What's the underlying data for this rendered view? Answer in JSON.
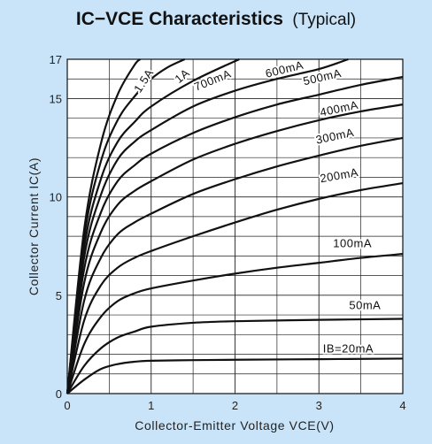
{
  "chart_data": {
    "type": "line",
    "title": "IC−VCE Characteristics",
    "subtitle": "(Typical)",
    "xlabel": "Collector-Emitter Voltage VCE(V)",
    "ylabel": "Collector Current IC(A)",
    "xlim": [
      0,
      4
    ],
    "ylim": [
      0,
      17
    ],
    "xticks": [
      "0",
      "1",
      "2",
      "3",
      "4"
    ],
    "yticks": [
      "0",
      "5",
      "10",
      "15",
      "17"
    ],
    "grid": true,
    "series": [
      {
        "name": "IB=20mA",
        "points": [
          [
            0,
            0
          ],
          [
            0.2,
            0.7
          ],
          [
            0.4,
            1.25
          ],
          [
            0.6,
            1.5
          ],
          [
            0.8,
            1.62
          ],
          [
            1.0,
            1.67
          ],
          [
            1.5,
            1.7
          ],
          [
            2.0,
            1.72
          ],
          [
            3.0,
            1.75
          ],
          [
            4.0,
            1.78
          ]
        ]
      },
      {
        "name": "50mA",
        "points": [
          [
            0,
            0
          ],
          [
            0.2,
            1.4
          ],
          [
            0.4,
            2.3
          ],
          [
            0.6,
            2.85
          ],
          [
            0.8,
            3.15
          ],
          [
            1.0,
            3.4
          ],
          [
            1.5,
            3.6
          ],
          [
            2.0,
            3.68
          ],
          [
            3.0,
            3.75
          ],
          [
            4.0,
            3.8
          ]
        ]
      },
      {
        "name": "100mA",
        "points": [
          [
            0,
            0
          ],
          [
            0.2,
            2.5
          ],
          [
            0.4,
            3.9
          ],
          [
            0.6,
            4.7
          ],
          [
            0.8,
            5.1
          ],
          [
            1.0,
            5.35
          ],
          [
            1.5,
            5.75
          ],
          [
            2.0,
            6.1
          ],
          [
            2.5,
            6.4
          ],
          [
            3.0,
            6.65
          ],
          [
            3.5,
            6.9
          ],
          [
            4.0,
            7.1
          ]
        ]
      },
      {
        "name": "200mA",
        "points": [
          [
            0,
            0
          ],
          [
            0.2,
            3.7
          ],
          [
            0.4,
            5.5
          ],
          [
            0.6,
            6.4
          ],
          [
            0.8,
            6.9
          ],
          [
            1.0,
            7.25
          ],
          [
            1.5,
            8.0
          ],
          [
            2.0,
            8.7
          ],
          [
            2.5,
            9.35
          ],
          [
            3.0,
            9.9
          ],
          [
            3.5,
            10.35
          ],
          [
            4.0,
            10.7
          ]
        ]
      },
      {
        "name": "300mA",
        "points": [
          [
            0,
            0
          ],
          [
            0.2,
            4.7
          ],
          [
            0.4,
            6.9
          ],
          [
            0.6,
            8.1
          ],
          [
            0.8,
            8.7
          ],
          [
            1.0,
            9.15
          ],
          [
            1.5,
            10.15
          ],
          [
            2.0,
            10.9
          ],
          [
            2.5,
            11.55
          ],
          [
            3.0,
            12.1
          ],
          [
            3.5,
            12.6
          ],
          [
            4.0,
            13.0
          ]
        ]
      },
      {
        "name": "400mA",
        "points": [
          [
            0,
            0
          ],
          [
            0.2,
            5.6
          ],
          [
            0.4,
            8.2
          ],
          [
            0.6,
            9.6
          ],
          [
            0.8,
            10.3
          ],
          [
            1.0,
            10.8
          ],
          [
            1.5,
            11.9
          ],
          [
            2.0,
            12.7
          ],
          [
            2.5,
            13.35
          ],
          [
            3.0,
            13.9
          ],
          [
            3.5,
            14.35
          ],
          [
            4.0,
            14.7
          ]
        ]
      },
      {
        "name": "500mA",
        "points": [
          [
            0,
            0
          ],
          [
            0.2,
            6.3
          ],
          [
            0.4,
            9.2
          ],
          [
            0.6,
            10.8
          ],
          [
            0.8,
            11.6
          ],
          [
            1.0,
            12.2
          ],
          [
            1.5,
            13.25
          ],
          [
            2.0,
            14.05
          ],
          [
            2.5,
            14.7
          ],
          [
            3.0,
            15.2
          ],
          [
            3.5,
            15.7
          ],
          [
            4.0,
            16.1
          ]
        ]
      },
      {
        "name": "600mA",
        "points": [
          [
            0,
            0
          ],
          [
            0.2,
            6.9
          ],
          [
            0.4,
            10.1
          ],
          [
            0.6,
            11.9
          ],
          [
            0.8,
            12.8
          ],
          [
            1.0,
            13.4
          ],
          [
            1.5,
            14.6
          ],
          [
            2.0,
            15.4
          ],
          [
            2.5,
            16.0
          ],
          [
            3.0,
            16.5
          ],
          [
            3.35,
            17.0
          ]
        ]
      },
      {
        "name": "700mA",
        "points": [
          [
            0,
            0
          ],
          [
            0.2,
            7.4
          ],
          [
            0.4,
            10.9
          ],
          [
            0.6,
            12.8
          ],
          [
            0.8,
            13.8
          ],
          [
            1.0,
            14.6
          ],
          [
            1.5,
            15.9
          ],
          [
            2.05,
            17.0
          ]
        ]
      },
      {
        "name": "1A",
        "points": [
          [
            0,
            0
          ],
          [
            0.2,
            7.9
          ],
          [
            0.4,
            11.8
          ],
          [
            0.6,
            13.9
          ],
          [
            0.8,
            15.1
          ],
          [
            1.0,
            16.0
          ],
          [
            1.2,
            16.6
          ],
          [
            1.4,
            17.0
          ]
        ]
      },
      {
        "name": "1.5A",
        "points": [
          [
            0,
            0
          ],
          [
            0.2,
            8.3
          ],
          [
            0.4,
            12.7
          ],
          [
            0.6,
            15.2
          ],
          [
            0.8,
            16.7
          ],
          [
            0.87,
            17.0
          ]
        ]
      }
    ],
    "curve_labels": [
      {
        "text": "IB=20mA",
        "x": 3.35,
        "y": 2.1,
        "rotate": 0
      },
      {
        "text": "50mA",
        "x": 3.55,
        "y": 4.3,
        "rotate": 0
      },
      {
        "text": "100mA",
        "x": 3.4,
        "y": 7.45,
        "rotate": 0
      },
      {
        "text": "200mA",
        "x": 3.25,
        "y": 10.9,
        "rotate": -10
      },
      {
        "text": "300mA",
        "x": 3.2,
        "y": 12.9,
        "rotate": -12
      },
      {
        "text": "400mA",
        "x": 3.25,
        "y": 14.3,
        "rotate": -12
      },
      {
        "text": "500mA",
        "x": 3.05,
        "y": 15.9,
        "rotate": -13
      },
      {
        "text": "600mA",
        "x": 2.6,
        "y": 16.3,
        "rotate": -14
      },
      {
        "text": "700mA",
        "x": 1.75,
        "y": 15.75,
        "rotate": -22
      },
      {
        "text": "1A",
        "x": 1.4,
        "y": 16.0,
        "rotate": -40
      },
      {
        "text": "1.5A",
        "x": 0.95,
        "y": 15.8,
        "rotate": -57
      }
    ],
    "colors": {
      "background": "#c9e4f8",
      "plot": "#ffffff",
      "curve": "#111111",
      "grid": "#222222"
    }
  }
}
